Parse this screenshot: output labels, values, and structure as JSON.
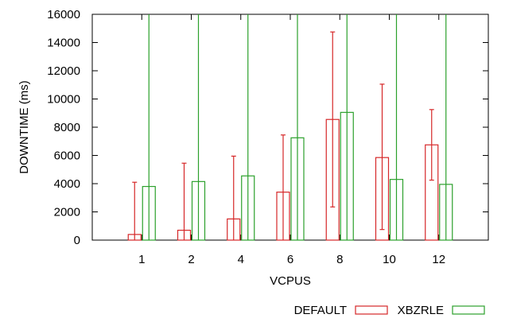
{
  "chart_data": {
    "type": "bar",
    "title": "",
    "xlabel": "VCPUS",
    "ylabel": "DOWNTIME (ms)",
    "categories": [
      "1",
      "2",
      "4",
      "6",
      "8",
      "10",
      "12"
    ],
    "ylim": [
      0,
      16000
    ],
    "yticks": [
      0,
      2000,
      4000,
      6000,
      8000,
      10000,
      12000,
      14000,
      16000
    ],
    "grid": false,
    "legend_position": "bottom-right",
    "series": [
      {
        "name": "DEFAULT",
        "color": "#d62728",
        "values": [
          400,
          700,
          1500,
          3400,
          8550,
          5850,
          6750
        ],
        "err_low": [
          0,
          0,
          0,
          0,
          2350,
          750,
          4250
        ],
        "err_high": [
          4100,
          5450,
          5950,
          7450,
          14750,
          11050,
          9250
        ]
      },
      {
        "name": "XBZRLE",
        "color": "#2ca02c",
        "values": [
          3800,
          4150,
          4550,
          7250,
          9050,
          4300,
          3950
        ],
        "err_low": [
          0,
          0,
          0,
          0,
          0,
          0,
          0
        ],
        "err_high": [
          16000,
          16000,
          16000,
          16000,
          16000,
          16000,
          16000
        ]
      }
    ]
  }
}
